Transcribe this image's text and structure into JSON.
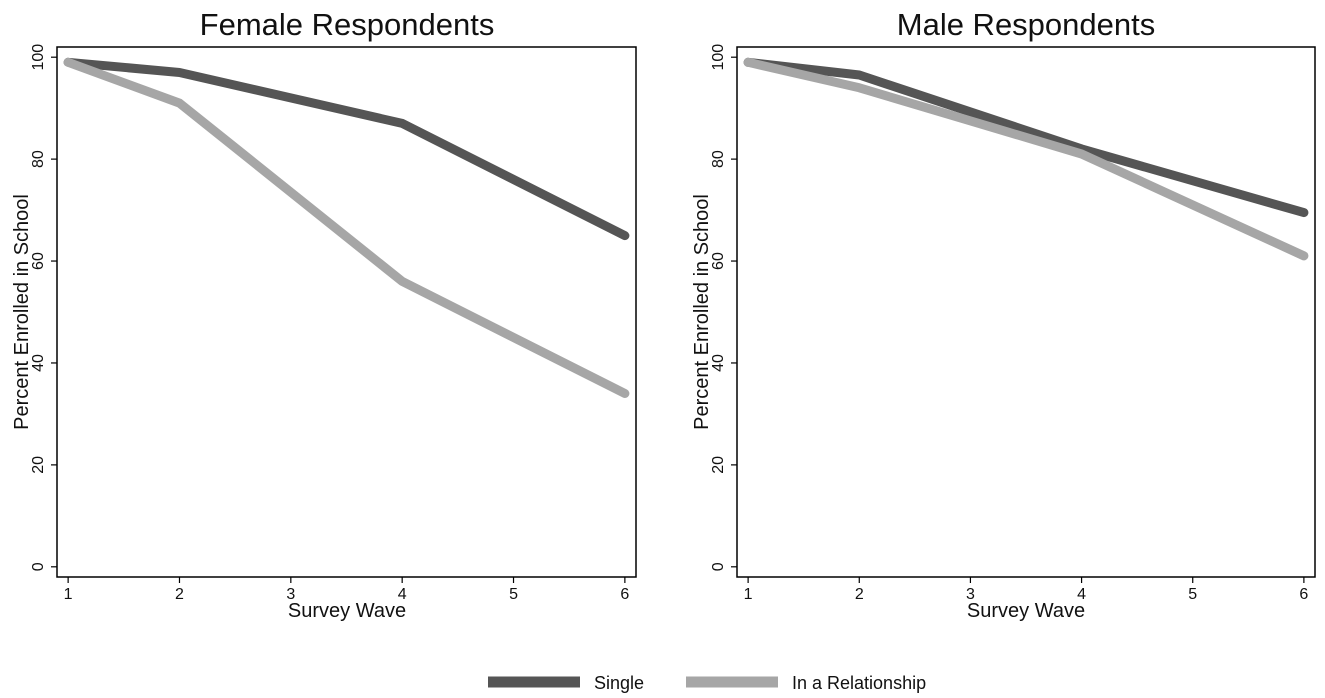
{
  "chart_data": [
    {
      "type": "line",
      "title": "Female Respondents",
      "xlabel": "Survey Wave",
      "ylabel": "Percent Enrolled in School",
      "x": [
        1,
        2,
        4,
        6
      ],
      "xticks": [
        1,
        2,
        3,
        4,
        5,
        6
      ],
      "yticks": [
        0,
        20,
        40,
        60,
        80,
        100
      ],
      "xlim": [
        0.9,
        6.1
      ],
      "ylim": [
        -2,
        102
      ],
      "grid": false,
      "series": [
        {
          "name": "Single",
          "color": "#555555",
          "values": [
            99,
            97,
            87,
            65
          ]
        },
        {
          "name": "In a Relationship",
          "color": "#a6a6a6",
          "values": [
            99,
            91,
            56,
            34
          ]
        }
      ]
    },
    {
      "type": "line",
      "title": "Male Respondents",
      "xlabel": "Survey Wave",
      "ylabel": "Percent Enrolled in School",
      "x": [
        1,
        2,
        4,
        6
      ],
      "xticks": [
        1,
        2,
        3,
        4,
        5,
        6
      ],
      "yticks": [
        0,
        20,
        40,
        60,
        80,
        100
      ],
      "xlim": [
        0.9,
        6.1
      ],
      "ylim": [
        -2,
        102
      ],
      "grid": false,
      "series": [
        {
          "name": "Single",
          "color": "#555555",
          "values": [
            99,
            96.5,
            82,
            69.5
          ]
        },
        {
          "name": "In a Relationship",
          "color": "#a6a6a6",
          "values": [
            99,
            94,
            81,
            61
          ]
        }
      ]
    }
  ],
  "legend": {
    "placement": "bottom-center",
    "items": [
      {
        "label": "Single",
        "color": "#555555"
      },
      {
        "label": "In a Relationship",
        "color": "#a6a6a6"
      }
    ]
  }
}
